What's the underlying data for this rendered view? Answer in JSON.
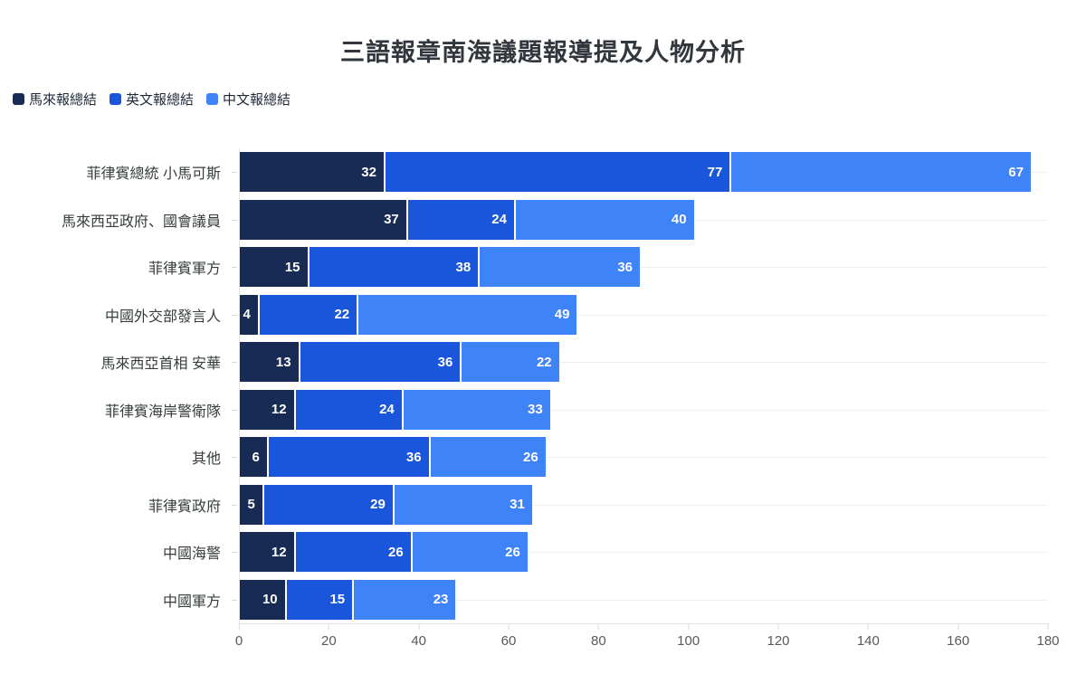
{
  "title": "三語報章南海議題報導提及人物分析",
  "chart_data": {
    "type": "bar",
    "orientation": "horizontal",
    "stacked": true,
    "title": "三語報章南海議題報導提及人物分析",
    "legend_position": "top-left",
    "grid": "horizontal-row-lines",
    "xlim": [
      0,
      180
    ],
    "x_ticks": [
      0,
      20,
      40,
      60,
      80,
      100,
      120,
      140,
      160,
      180
    ],
    "categories": [
      "菲律賓總統 小馬可斯",
      "馬來西亞政府、國會議員",
      "菲律賓軍方",
      "中國外交部發言人",
      "馬來西亞首相 安華",
      "菲律賓海岸警衛隊",
      "其他",
      "菲律賓政府",
      "中國海警",
      "中國軍方"
    ],
    "series": [
      {
        "name": "馬來報總結",
        "color": "#172b55",
        "values": [
          32,
          37,
          15,
          4,
          13,
          12,
          6,
          5,
          12,
          10
        ]
      },
      {
        "name": "英文報總結",
        "color": "#1a56db",
        "values": [
          77,
          24,
          38,
          22,
          36,
          24,
          36,
          29,
          26,
          15
        ]
      },
      {
        "name": "中文報總結",
        "color": "#3f83f8",
        "values": [
          67,
          40,
          36,
          49,
          22,
          33,
          26,
          31,
          26,
          23
        ]
      }
    ]
  }
}
